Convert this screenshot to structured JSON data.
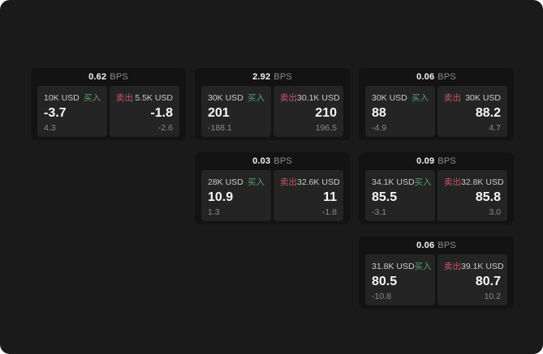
{
  "labels": {
    "bps_unit": "BPS",
    "buy": "买入",
    "sell": "卖出"
  },
  "colors": {
    "page_bg": "#1a1a1a",
    "card_bg": "#131313",
    "panel_bg": "#242424",
    "buy_accent": "#55a06e",
    "sell_accent": "#c65667"
  },
  "cards": [
    {
      "bps_value": "0.62",
      "buy": {
        "amount": "10K USD",
        "price": "-3.7",
        "change": "4.3"
      },
      "sell": {
        "amount": "5.5K USD",
        "price": "-1.8",
        "change": "-2.6"
      }
    },
    {
      "bps_value": "2.92",
      "buy": {
        "amount": "30K USD",
        "price": "201",
        "change": "-188.1"
      },
      "sell": {
        "amount": "30.1K USD",
        "price": "210",
        "change": "196.5"
      }
    },
    {
      "bps_value": "0.06",
      "buy": {
        "amount": "30K USD",
        "price": "88",
        "change": "-4.9"
      },
      "sell": {
        "amount": "30K USD",
        "price": "88.2",
        "change": "4.7"
      }
    },
    {
      "bps_value": "0.03",
      "buy": {
        "amount": "28K USD",
        "price": "10.9",
        "change": "1.3"
      },
      "sell": {
        "amount": "32.6K USD",
        "price": "11",
        "change": "-1.8"
      }
    },
    {
      "bps_value": "0.09",
      "buy": {
        "amount": "34.1K USD",
        "price": "85.5",
        "change": "-3.1"
      },
      "sell": {
        "amount": "32.8K USD",
        "price": "85.8",
        "change": "3.0"
      }
    },
    {
      "bps_value": "0.06",
      "buy": {
        "amount": "31.8K USD",
        "price": "80.5",
        "change": "-10.8"
      },
      "sell": {
        "amount": "39.1K USD",
        "price": "80.7",
        "change": "10.2"
      }
    }
  ]
}
